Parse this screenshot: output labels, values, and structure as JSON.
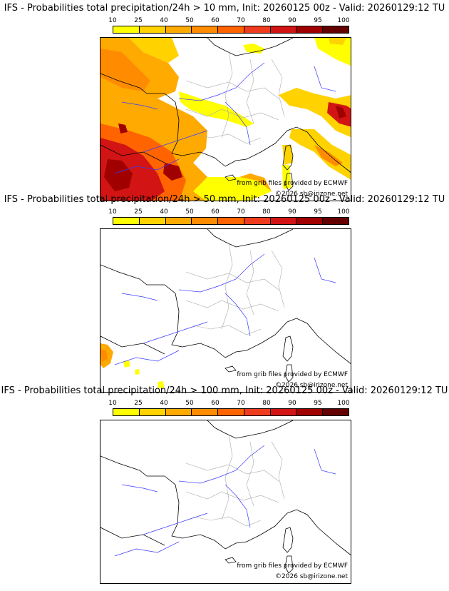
{
  "legend": {
    "ticks": [
      "10",
      "25",
      "40",
      "50",
      "60",
      "70",
      "80",
      "90",
      "95",
      "100"
    ],
    "colors": [
      "#ffff00",
      "#ffd200",
      "#ffaa00",
      "#ff8c00",
      "#ff6400",
      "#f03c1e",
      "#d21414",
      "#a00000",
      "#640000"
    ]
  },
  "panels": [
    {
      "title": "IFS - Probabilities total precipitation/24h > 10 mm, Init: 20260125 00z - Valid: 20260129:12 TU",
      "credit_source": "from grib files provided by ECMWF",
      "credit_copyright": "©2026 sb@irizone.net"
    },
    {
      "title": "IFS - Probabilities total precipitation/24h > 50 mm, Init: 20260125 00z - Valid: 20260129:12 TU",
      "credit_source": "from grib files provided by ECMWF",
      "credit_copyright": "©2026 sb@irizone.net"
    },
    {
      "title": "IFS - Probabilities total precipitation/24h > 100 mm, Init: 20260125 00z - Valid: 20260129:12 TU",
      "credit_source": "from grib files provided by ECMWF",
      "credit_copyright": "©2026 sb@irizone.net"
    }
  ]
}
